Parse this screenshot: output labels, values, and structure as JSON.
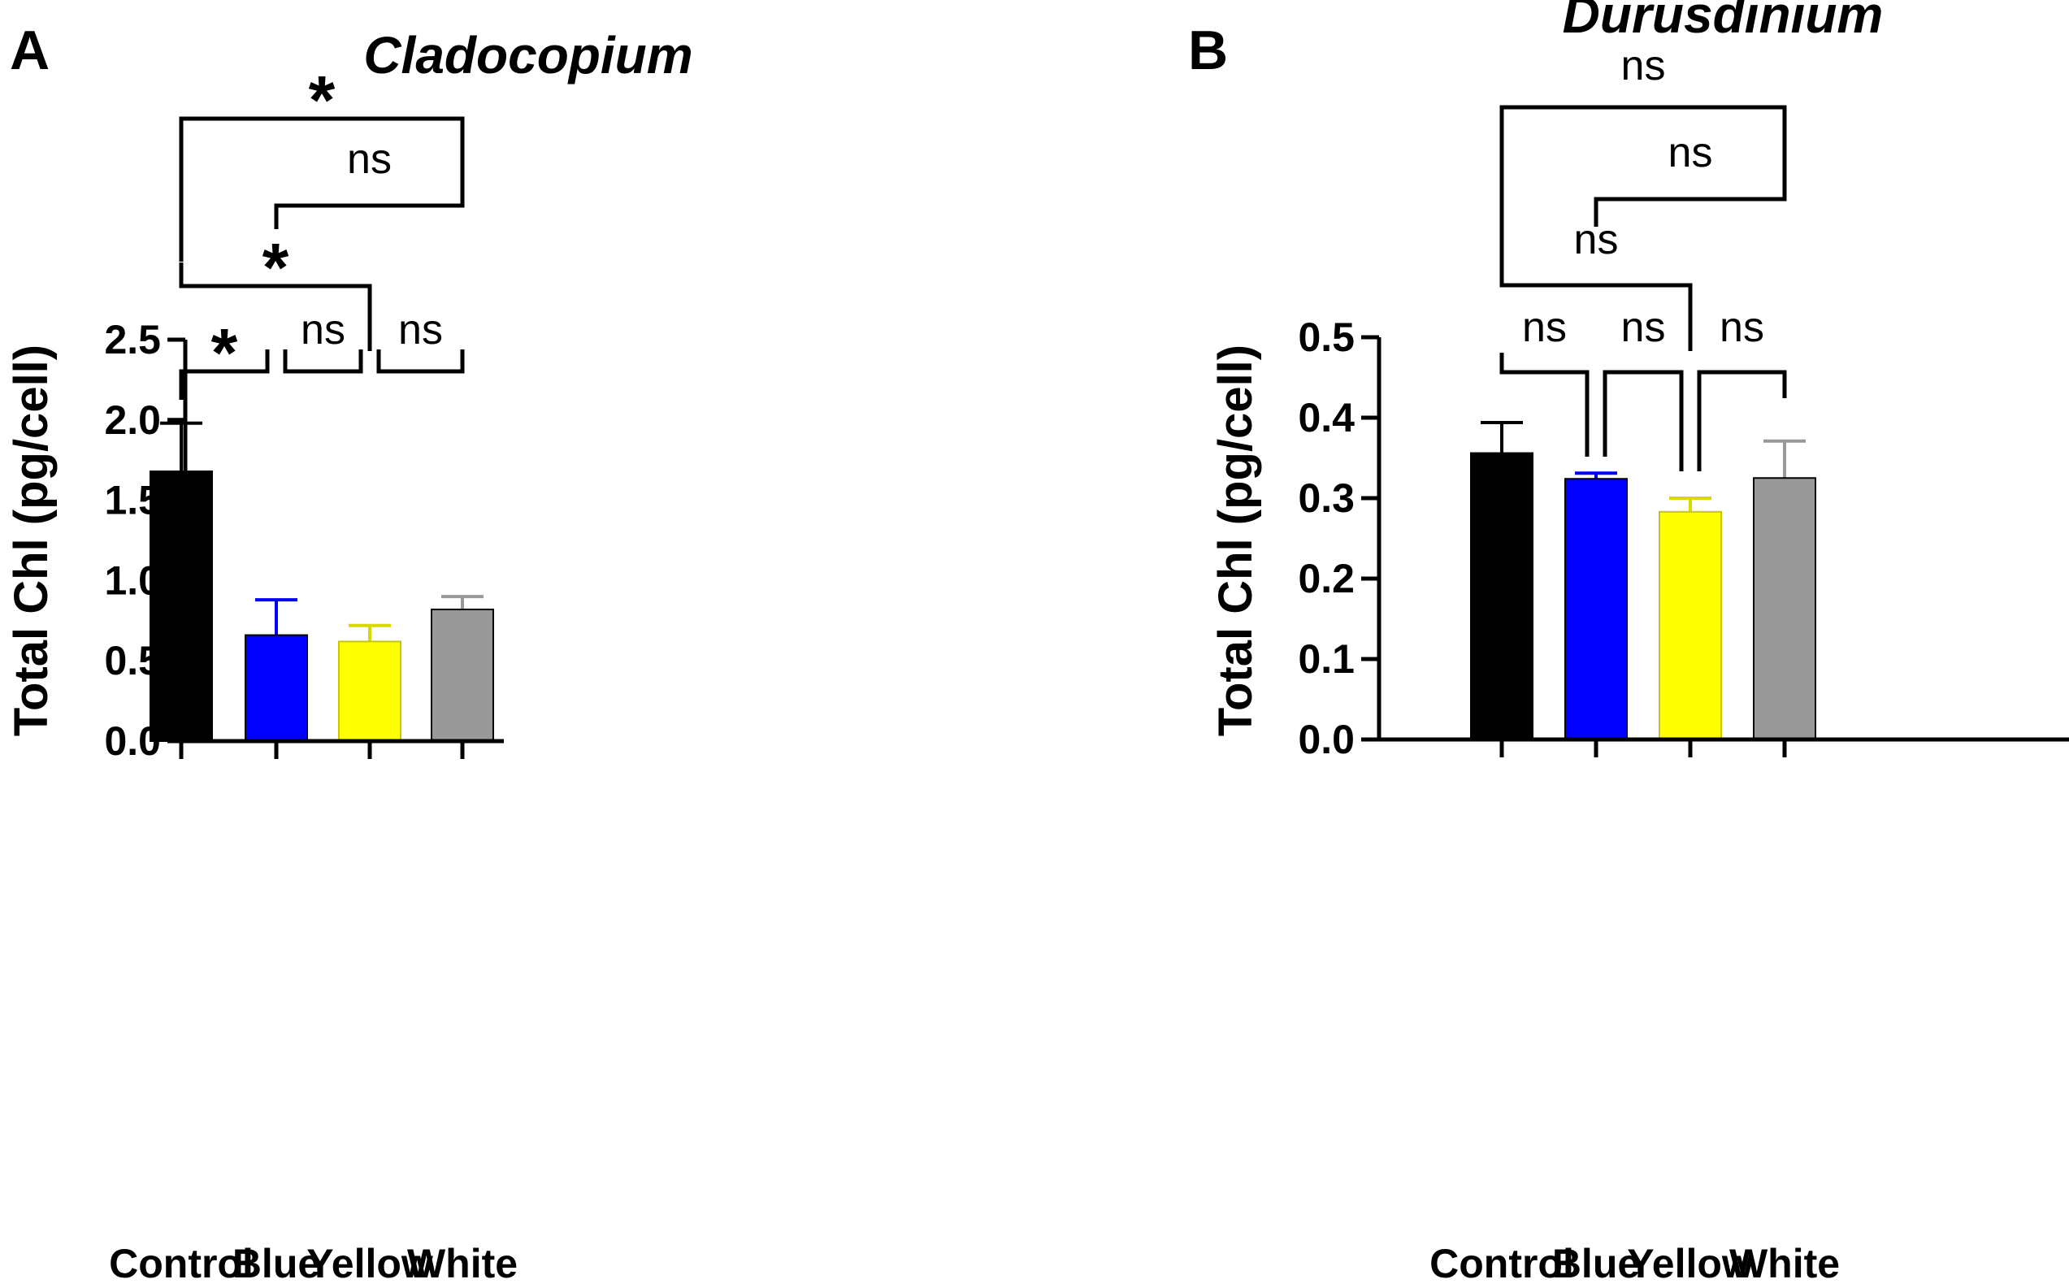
{
  "chart_data": [
    {
      "type": "bar",
      "panel_label": "A",
      "title": "Cladocopium",
      "xlabel": "",
      "ylabel": "Total Chl (pg/cell)",
      "categories": [
        "Control",
        "Blue",
        "Yellow",
        "White"
      ],
      "values": [
        1.68,
        0.66,
        0.62,
        0.82
      ],
      "errors": [
        0.3,
        0.22,
        0.1,
        0.08
      ],
      "colors": [
        "#000000",
        "#0000ff",
        "#ffff00",
        "#999999"
      ],
      "ylim": [
        0,
        2.5
      ],
      "yticks": [
        0,
        0.5,
        1,
        1.5,
        2,
        2.5
      ],
      "ytick_labels": [
        "0.0",
        "0.5",
        "1.0",
        "1.5",
        "2.0",
        "2.5"
      ],
      "comparisons": [
        {
          "from": "Control",
          "to": "Blue",
          "label": "*"
        },
        {
          "from": "Blue",
          "to": "Yellow",
          "label": "ns"
        },
        {
          "from": "Yellow",
          "to": "White",
          "label": "ns"
        },
        {
          "from": "Control",
          "to": "Yellow",
          "label": "*"
        },
        {
          "from": "Blue",
          "to": "White",
          "label": "ns"
        },
        {
          "from": "Control",
          "to": "White",
          "label": "*"
        }
      ]
    },
    {
      "type": "bar",
      "panel_label": "B",
      "title": "Durusdinium",
      "xlabel": "",
      "ylabel": "Total Chl (pg/cell)",
      "categories": [
        "Control",
        "Blue",
        "Yellow",
        "White"
      ],
      "values": [
        0.356,
        0.324,
        0.283,
        0.325
      ],
      "errors": [
        0.038,
        0.007,
        0.017,
        0.046
      ],
      "colors": [
        "#000000",
        "#0000ff",
        "#ffff00",
        "#999999"
      ],
      "ylim": [
        0,
        0.5
      ],
      "yticks": [
        0,
        0.1,
        0.2,
        0.3,
        0.4,
        0.5
      ],
      "ytick_labels": [
        "0.0",
        "0.1",
        "0.2",
        "0.3",
        "0.4",
        "0.5"
      ],
      "comparisons": [
        {
          "from": "Control",
          "to": "Blue",
          "label": "ns"
        },
        {
          "from": "Blue",
          "to": "Yellow",
          "label": "ns"
        },
        {
          "from": "Yellow",
          "to": "White",
          "label": "ns"
        },
        {
          "from": "Control",
          "to": "Yellow",
          "label": "ns"
        },
        {
          "from": "Blue",
          "to": "White",
          "label": "ns"
        },
        {
          "from": "Control",
          "to": "White",
          "label": "ns"
        }
      ]
    }
  ]
}
